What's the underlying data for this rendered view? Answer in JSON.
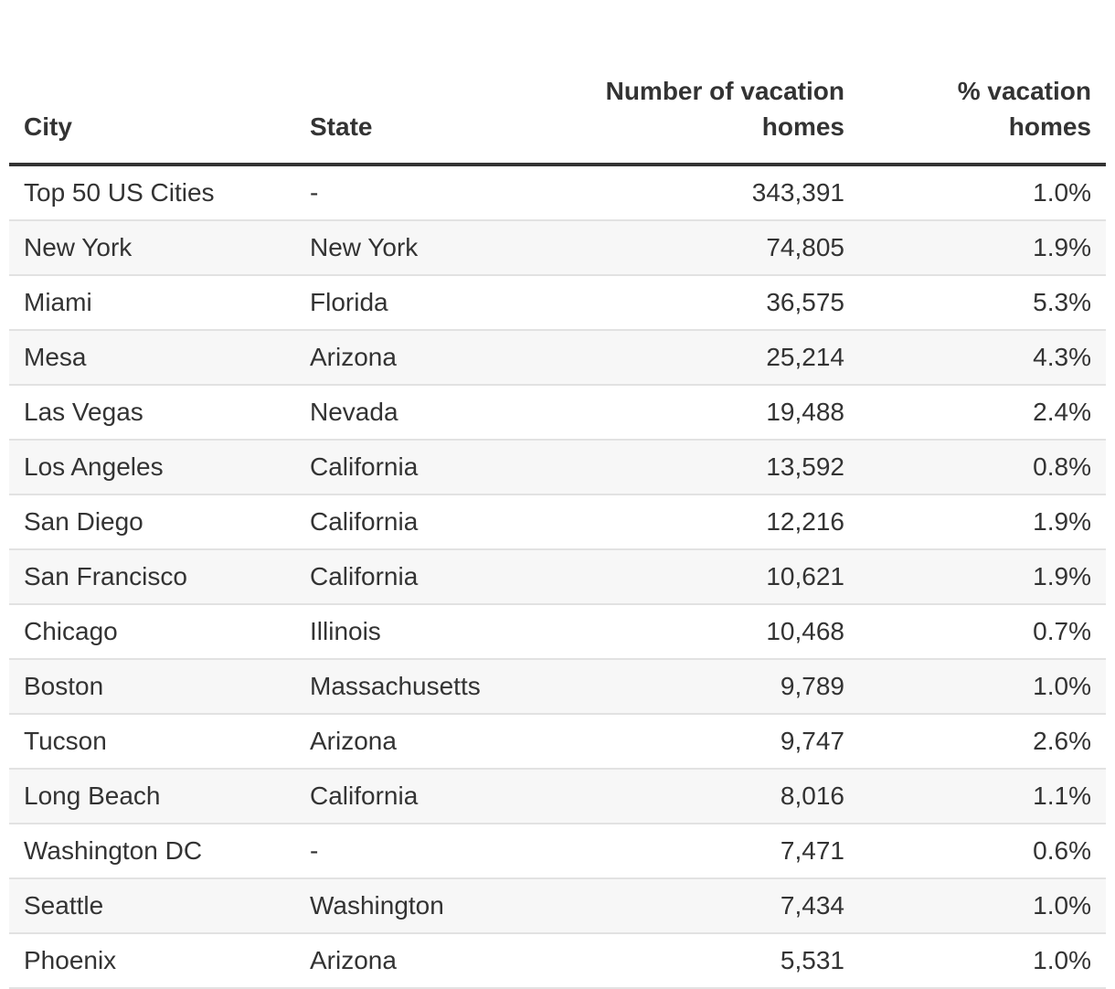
{
  "table": {
    "columns": [
      {
        "key": "city",
        "label": "City"
      },
      {
        "key": "state",
        "label": "State"
      },
      {
        "key": "number",
        "label": "Number of vacation homes"
      },
      {
        "key": "percent",
        "label": "% vacation homes"
      }
    ],
    "rows": [
      {
        "city": "Top 50 US Cities",
        "state": "-",
        "number": "343,391",
        "percent": "1.0%"
      },
      {
        "city": "New York",
        "state": "New York",
        "number": "74,805",
        "percent": "1.9%"
      },
      {
        "city": "Miami",
        "state": "Florida",
        "number": "36,575",
        "percent": "5.3%"
      },
      {
        "city": "Mesa",
        "state": "Arizona",
        "number": "25,214",
        "percent": "4.3%"
      },
      {
        "city": "Las Vegas",
        "state": "Nevada",
        "number": "19,488",
        "percent": "2.4%"
      },
      {
        "city": "Los Angeles",
        "state": "California",
        "number": "13,592",
        "percent": "0.8%"
      },
      {
        "city": "San Diego",
        "state": "California",
        "number": "12,216",
        "percent": "1.9%"
      },
      {
        "city": "San Francisco",
        "state": "California",
        "number": "10,621",
        "percent": "1.9%"
      },
      {
        "city": "Chicago",
        "state": "Illinois",
        "number": "10,468",
        "percent": "0.7%"
      },
      {
        "city": "Boston",
        "state": "Massachusetts",
        "number": "9,789",
        "percent": "1.0%"
      },
      {
        "city": "Tucson",
        "state": "Arizona",
        "number": "9,747",
        "percent": "2.6%"
      },
      {
        "city": "Long Beach",
        "state": "California",
        "number": "8,016",
        "percent": "1.1%"
      },
      {
        "city": "Washington DC",
        "state": "-",
        "number": "7,471",
        "percent": "0.6%"
      },
      {
        "city": "Seattle",
        "state": "Washington",
        "number": "7,434",
        "percent": "1.0%"
      },
      {
        "city": "Phoenix",
        "state": "Arizona",
        "number": "5,531",
        "percent": "1.0%"
      }
    ]
  }
}
